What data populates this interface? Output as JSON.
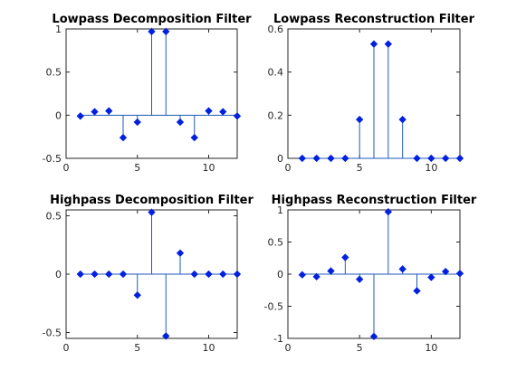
{
  "figure": {
    "background": "#ffffff",
    "stem_color": "#1f5ab8",
    "marker_color": "#0020e0"
  },
  "chart_data": [
    {
      "type": "stem",
      "title": "Lowpass Decomposition Filter",
      "xlim": [
        0,
        12
      ],
      "ylim": [
        -0.5,
        1
      ],
      "xticks": [
        0,
        5,
        10
      ],
      "yticks": [
        -0.5,
        0,
        0.5,
        1
      ],
      "xticklabels": [
        "0",
        "5",
        "10"
      ],
      "yticklabels": [
        "-0.5",
        "0",
        "0.5",
        "1"
      ],
      "x": [
        1,
        2,
        3,
        4,
        5,
        6,
        7,
        8,
        9,
        10,
        11,
        12
      ],
      "y": [
        -0.01,
        0.04,
        0.05,
        -0.26,
        -0.08,
        0.97,
        0.97,
        -0.08,
        -0.26,
        0.05,
        0.04,
        -0.01
      ]
    },
    {
      "type": "stem",
      "title": "Lowpass Reconstruction Filter",
      "xlim": [
        0,
        12
      ],
      "ylim": [
        0,
        0.6
      ],
      "xticks": [
        0,
        5,
        10
      ],
      "yticks": [
        0,
        0.2,
        0.4,
        0.6
      ],
      "xticklabels": [
        "0",
        "5",
        "10"
      ],
      "yticklabels": [
        "0",
        "0.2",
        "0.4",
        "0.6"
      ],
      "x": [
        1,
        2,
        3,
        4,
        5,
        6,
        7,
        8,
        9,
        10,
        11,
        12
      ],
      "y": [
        0,
        0,
        0,
        0,
        0.18,
        0.53,
        0.53,
        0.18,
        0,
        0,
        0,
        0
      ]
    },
    {
      "type": "stem",
      "title": "Highpass Decomposition Filter",
      "xlim": [
        0,
        12
      ],
      "ylim": [
        -0.55,
        0.55
      ],
      "xticks": [
        0,
        5,
        10
      ],
      "yticks": [
        -0.5,
        0,
        0.5
      ],
      "xticklabels": [
        "0",
        "5",
        "10"
      ],
      "yticklabels": [
        "-0.5",
        "0",
        "0.5"
      ],
      "x": [
        1,
        2,
        3,
        4,
        5,
        6,
        7,
        8,
        9,
        10,
        11,
        12
      ],
      "y": [
        0,
        0,
        0,
        0,
        -0.18,
        0.53,
        -0.53,
        0.18,
        0,
        0,
        0,
        0
      ]
    },
    {
      "type": "stem",
      "title": "Highpass Reconstruction Filter",
      "xlim": [
        0,
        12
      ],
      "ylim": [
        -1,
        1
      ],
      "xticks": [
        0,
        5,
        10
      ],
      "yticks": [
        -1,
        -0.5,
        0,
        0.5,
        1
      ],
      "xticklabels": [
        "0",
        "5",
        "10"
      ],
      "yticklabels": [
        "-1",
        "-0.5",
        "0",
        "0.5",
        "1"
      ],
      "x": [
        1,
        2,
        3,
        4,
        5,
        6,
        7,
        8,
        9,
        10,
        11,
        12
      ],
      "y": [
        -0.01,
        -0.04,
        0.05,
        0.26,
        -0.08,
        -0.97,
        0.97,
        0.08,
        -0.26,
        -0.05,
        0.04,
        0.01
      ]
    }
  ]
}
